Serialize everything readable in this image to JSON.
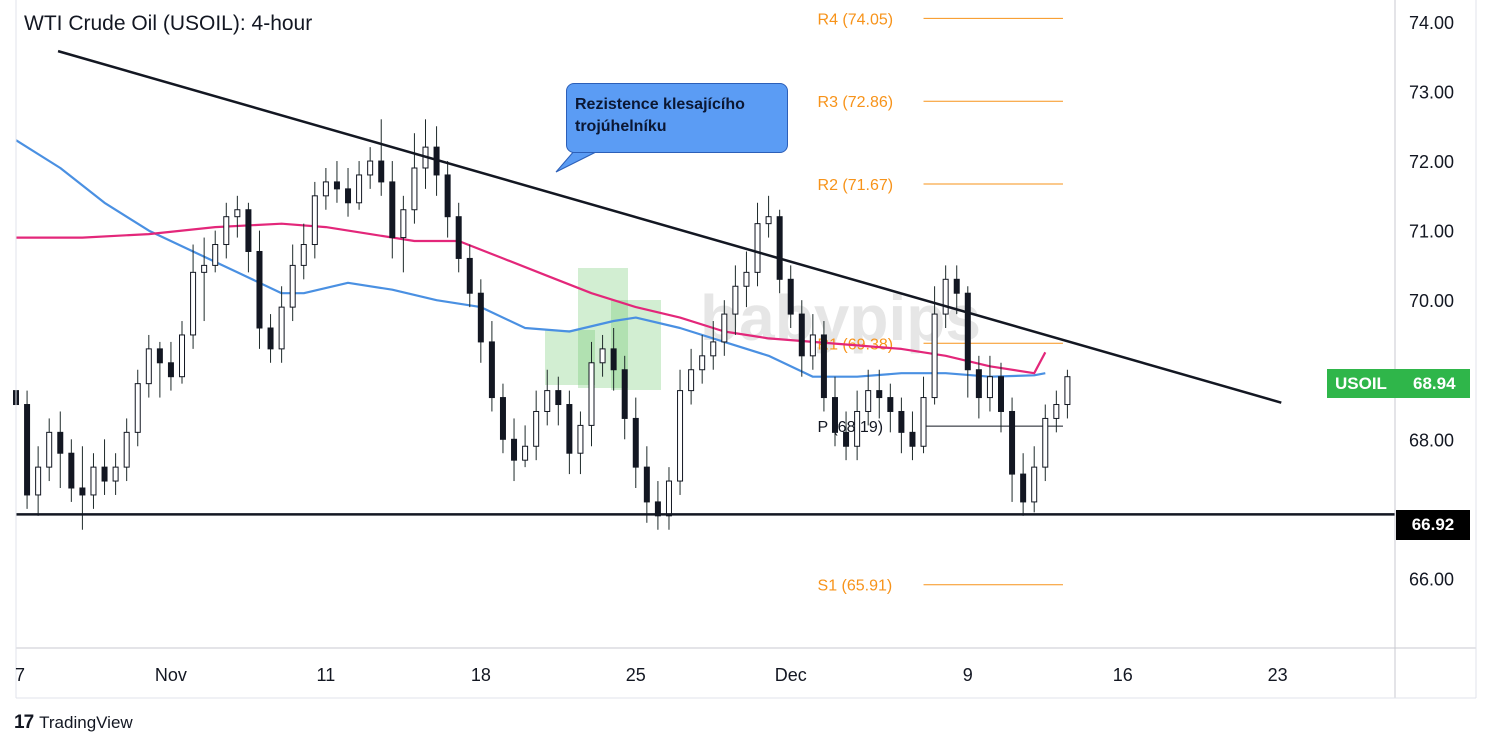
{
  "header": {
    "title": "WTI Crude Oil (USOIL): 4-hour"
  },
  "footer": {
    "brand": "TradingView",
    "brand_icon": "tradingview-logo-icon"
  },
  "watermark": {
    "text": "babypips",
    "color": "#5cc15c"
  },
  "annotation": {
    "text": "Rezistence klesajícího trojúhelníku",
    "color": "#5b9cf4"
  },
  "symbol_badge": {
    "symbol": "USOIL",
    "price": "68.94",
    "color": "#2fb64a"
  },
  "support_badge": {
    "value": "66.92"
  },
  "chart_data": {
    "type": "candlestick",
    "title": "WTI Crude Oil (USOIL): 4-hour",
    "timeframe": "4-hour",
    "x_ticks": [
      {
        "label": "7",
        "day": 7
      },
      {
        "label": "Nov",
        "day": 14
      },
      {
        "label": "11",
        "day": 21
      },
      {
        "label": "18",
        "day": 28
      },
      {
        "label": "25",
        "day": 35
      },
      {
        "label": "Dec",
        "day": 42
      },
      {
        "label": "9",
        "day": 50
      },
      {
        "label": "16",
        "day": 57
      },
      {
        "label": "23",
        "day": 64
      }
    ],
    "y_ticks": [
      "74.00",
      "73.00",
      "72.00",
      "71.00",
      "70.00",
      "68.00",
      "66.00"
    ],
    "ylim": [
      65.0,
      74.2
    ],
    "xlim": [
      7,
      69.3
    ],
    "grid": false,
    "pivot_levels": [
      {
        "label": "R4 (74.05)",
        "value": 74.05,
        "color": "#f7931a"
      },
      {
        "label": "R3 (72.86)",
        "value": 72.86,
        "color": "#f7931a"
      },
      {
        "label": "R2 (71.67)",
        "value": 71.67,
        "color": "#f7931a"
      },
      {
        "label": "R1 (69.38)",
        "value": 69.38,
        "color": "#f7931a"
      },
      {
        "label": "P (68.19)",
        "value": 68.19,
        "color": "#131722"
      },
      {
        "label": "S1 (65.91)",
        "value": 65.91,
        "color": "#f7931a"
      }
    ],
    "pivot_range": [
      48.0,
      54.3
    ],
    "support_line": {
      "value": 66.92,
      "label": "66.92"
    },
    "trendline": {
      "start": [
        8.9,
        73.58
      ],
      "end": [
        61.0,
        68.8
      ]
    },
    "last_price": 68.94,
    "moving_averages": [
      {
        "color": "#4a90e2",
        "points": [
          [
            7,
            72.3
          ],
          [
            9,
            71.9
          ],
          [
            11,
            71.4
          ],
          [
            13,
            71.0
          ],
          [
            15,
            70.7
          ],
          [
            17,
            70.4
          ],
          [
            19,
            70.1
          ],
          [
            20,
            70.1
          ],
          [
            22,
            70.25
          ],
          [
            24,
            70.15
          ],
          [
            26,
            70.0
          ],
          [
            28,
            69.9
          ],
          [
            30,
            69.6
          ],
          [
            32,
            69.55
          ],
          [
            34,
            69.7
          ],
          [
            35,
            69.75
          ],
          [
            37,
            69.6
          ],
          [
            39,
            69.4
          ],
          [
            41,
            69.2
          ],
          [
            43,
            68.9
          ],
          [
            45,
            68.9
          ],
          [
            47,
            68.95
          ],
          [
            49,
            68.95
          ],
          [
            51,
            68.9
          ],
          [
            53,
            68.92
          ],
          [
            53.5,
            68.95
          ]
        ]
      },
      {
        "color": "#e3277a",
        "points": [
          [
            7,
            70.9
          ],
          [
            10,
            70.9
          ],
          [
            13,
            70.95
          ],
          [
            16,
            71.05
          ],
          [
            19,
            71.1
          ],
          [
            21,
            71.05
          ],
          [
            23,
            70.95
          ],
          [
            25,
            70.85
          ],
          [
            27,
            70.85
          ],
          [
            29,
            70.6
          ],
          [
            31,
            70.35
          ],
          [
            33,
            70.1
          ],
          [
            35,
            69.9
          ],
          [
            37,
            69.75
          ],
          [
            39,
            69.55
          ],
          [
            41,
            69.45
          ],
          [
            43,
            69.4
          ],
          [
            45,
            69.35
          ],
          [
            47,
            69.3
          ],
          [
            49,
            69.2
          ],
          [
            51,
            69.05
          ],
          [
            53,
            68.95
          ],
          [
            53.5,
            69.25
          ]
        ]
      }
    ],
    "candles": [
      [
        7.0,
        68.7,
        68.5,
        68.8,
        68.1
      ],
      [
        7.5,
        68.5,
        67.2,
        68.7,
        67.0
      ],
      [
        8.0,
        67.2,
        67.6,
        67.9,
        66.9
      ],
      [
        8.5,
        67.6,
        68.1,
        68.3,
        67.4
      ],
      [
        9.0,
        68.1,
        67.8,
        68.4,
        67.3
      ],
      [
        9.5,
        67.8,
        67.3,
        68.0,
        67.1
      ],
      [
        10.0,
        67.3,
        67.2,
        67.9,
        66.7
      ],
      [
        10.5,
        67.2,
        67.6,
        67.8,
        67.0
      ],
      [
        11.0,
        67.6,
        67.4,
        68.0,
        67.2
      ],
      [
        11.5,
        67.4,
        67.6,
        67.8,
        67.2
      ],
      [
        12.0,
        67.6,
        68.1,
        68.3,
        67.4
      ],
      [
        12.5,
        68.1,
        68.8,
        69.0,
        67.9
      ],
      [
        13.0,
        68.8,
        69.3,
        69.5,
        68.6
      ],
      [
        13.5,
        69.3,
        69.1,
        69.4,
        68.6
      ],
      [
        14.0,
        69.1,
        68.9,
        69.4,
        68.7
      ],
      [
        14.5,
        68.9,
        69.5,
        69.7,
        68.8
      ],
      [
        15.0,
        69.5,
        70.4,
        70.8,
        69.3
      ],
      [
        15.5,
        70.4,
        70.5,
        70.9,
        69.7
      ],
      [
        16.0,
        70.5,
        70.8,
        71.0,
        70.4
      ],
      [
        16.5,
        70.8,
        71.2,
        71.4,
        70.6
      ],
      [
        17.0,
        71.2,
        71.3,
        71.5,
        70.9
      ],
      [
        17.5,
        71.3,
        70.7,
        71.4,
        70.4
      ],
      [
        18.0,
        70.7,
        69.6,
        71.0,
        69.3
      ],
      [
        18.5,
        69.6,
        69.3,
        69.8,
        69.1
      ],
      [
        19.0,
        69.3,
        69.9,
        70.2,
        69.1
      ],
      [
        19.5,
        69.9,
        70.5,
        70.8,
        69.7
      ],
      [
        20.0,
        70.5,
        70.8,
        71.1,
        70.3
      ],
      [
        20.5,
        70.8,
        71.5,
        71.7,
        70.6
      ],
      [
        21.0,
        71.5,
        71.7,
        71.9,
        71.3
      ],
      [
        21.5,
        71.7,
        71.6,
        72.0,
        71.4
      ],
      [
        22.0,
        71.6,
        71.4,
        71.9,
        71.2
      ],
      [
        22.5,
        71.4,
        71.8,
        72.0,
        71.3
      ],
      [
        23.0,
        71.8,
        72.0,
        72.2,
        71.6
      ],
      [
        23.5,
        72.0,
        71.7,
        72.6,
        71.5
      ],
      [
        24.0,
        71.7,
        70.9,
        72.0,
        70.6
      ],
      [
        24.5,
        70.9,
        71.3,
        71.5,
        70.4
      ],
      [
        25.0,
        71.3,
        71.9,
        72.4,
        71.1
      ],
      [
        25.5,
        71.9,
        72.2,
        72.6,
        71.6
      ],
      [
        26.0,
        72.2,
        71.8,
        72.5,
        71.5
      ],
      [
        26.5,
        71.8,
        71.2,
        72.0,
        70.9
      ],
      [
        27.0,
        71.2,
        70.6,
        71.4,
        70.4
      ],
      [
        27.5,
        70.6,
        70.1,
        70.8,
        69.9
      ],
      [
        28.0,
        70.1,
        69.4,
        70.3,
        69.1
      ],
      [
        28.5,
        69.4,
        68.6,
        69.7,
        68.4
      ],
      [
        29.0,
        68.6,
        68.0,
        68.8,
        67.8
      ],
      [
        29.5,
        68.0,
        67.7,
        68.3,
        67.4
      ],
      [
        30.0,
        67.7,
        67.9,
        68.2,
        67.6
      ],
      [
        30.5,
        67.9,
        68.4,
        68.7,
        67.7
      ],
      [
        31.0,
        68.4,
        68.7,
        69.0,
        68.2
      ],
      [
        31.5,
        68.7,
        68.5,
        68.9,
        68.2
      ],
      [
        32.0,
        68.5,
        67.8,
        68.7,
        67.5
      ],
      [
        32.5,
        67.8,
        68.2,
        68.4,
        67.5
      ],
      [
        33.0,
        68.2,
        69.1,
        69.4,
        67.9
      ],
      [
        33.5,
        69.1,
        69.3,
        69.5,
        68.9
      ],
      [
        34.0,
        69.3,
        69.0,
        69.6,
        68.7
      ],
      [
        34.5,
        69.0,
        68.3,
        69.2,
        68.0
      ],
      [
        35.0,
        68.3,
        67.6,
        68.6,
        67.3
      ],
      [
        35.5,
        67.6,
        67.1,
        67.9,
        66.8
      ],
      [
        36.0,
        67.1,
        66.9,
        67.4,
        66.7
      ],
      [
        36.5,
        66.9,
        67.4,
        67.6,
        66.7
      ],
      [
        37.0,
        67.4,
        68.7,
        69.0,
        67.2
      ],
      [
        37.5,
        68.7,
        69.0,
        69.3,
        68.5
      ],
      [
        38.0,
        69.0,
        69.2,
        69.5,
        68.8
      ],
      [
        38.5,
        69.2,
        69.4,
        69.7,
        69.0
      ],
      [
        39.0,
        69.4,
        69.8,
        70.0,
        69.2
      ],
      [
        39.5,
        69.8,
        70.2,
        70.5,
        69.5
      ],
      [
        40.0,
        70.2,
        70.4,
        70.7,
        69.9
      ],
      [
        40.5,
        70.4,
        71.1,
        71.4,
        70.2
      ],
      [
        41.0,
        71.1,
        71.2,
        71.5,
        70.9
      ],
      [
        41.5,
        71.2,
        70.3,
        71.3,
        70.1
      ],
      [
        42.0,
        70.3,
        69.8,
        70.5,
        69.6
      ],
      [
        42.5,
        69.8,
        69.2,
        70.0,
        68.9
      ],
      [
        43.0,
        69.2,
        69.5,
        69.8,
        69.0
      ],
      [
        43.5,
        69.5,
        68.6,
        69.7,
        68.4
      ],
      [
        44.0,
        68.6,
        68.1,
        68.9,
        67.9
      ],
      [
        44.5,
        68.1,
        67.9,
        68.4,
        67.7
      ],
      [
        45.0,
        67.9,
        68.4,
        68.7,
        67.7
      ],
      [
        45.5,
        68.4,
        68.7,
        69.0,
        68.2
      ],
      [
        46.0,
        68.7,
        68.6,
        69.0,
        68.3
      ],
      [
        46.5,
        68.6,
        68.4,
        68.8,
        68.1
      ],
      [
        47.0,
        68.4,
        68.1,
        68.6,
        67.8
      ],
      [
        47.5,
        68.1,
        67.9,
        68.4,
        67.7
      ],
      [
        48.0,
        67.9,
        68.6,
        68.9,
        67.8
      ],
      [
        48.5,
        68.6,
        69.8,
        70.2,
        68.5
      ],
      [
        49.0,
        69.8,
        70.3,
        70.5,
        69.6
      ],
      [
        49.5,
        70.3,
        70.1,
        70.5,
        69.8
      ],
      [
        50.0,
        70.1,
        69.0,
        70.2,
        68.6
      ],
      [
        50.5,
        69.0,
        68.6,
        69.2,
        68.3
      ],
      [
        51.0,
        68.6,
        68.9,
        69.2,
        68.4
      ],
      [
        51.5,
        68.9,
        68.4,
        69.1,
        68.1
      ],
      [
        52.0,
        68.4,
        67.5,
        68.6,
        67.1
      ],
      [
        52.5,
        67.5,
        67.1,
        67.8,
        66.9
      ],
      [
        53.0,
        67.1,
        67.6,
        67.9,
        66.95
      ],
      [
        53.5,
        67.6,
        68.3,
        68.5,
        67.4
      ],
      [
        54.0,
        68.3,
        68.5,
        68.7,
        68.1
      ],
      [
        54.5,
        68.5,
        68.9,
        69.0,
        68.3
      ]
    ]
  }
}
